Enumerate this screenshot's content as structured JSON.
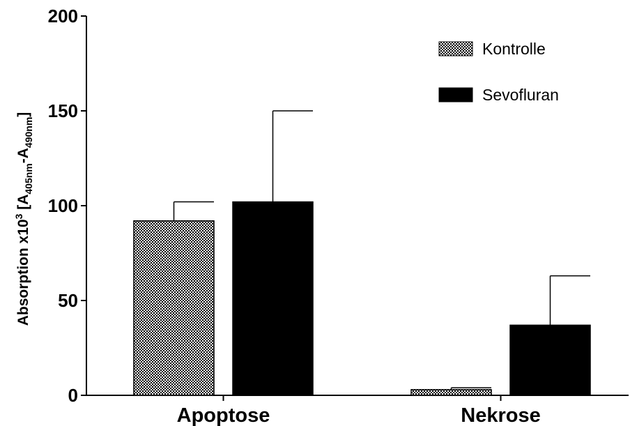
{
  "chart_data": {
    "type": "bar",
    "title": "",
    "xlabel": "",
    "ylabel": {
      "main": "Absorption x10",
      "sup": "3",
      "bracket_open": " [A",
      "sub1": "405nm",
      "mid": "-A",
      "sub2": "490nm",
      "bracket_close": "]"
    },
    "ylim": [
      0,
      200
    ],
    "yticks": [
      0,
      50,
      100,
      150,
      200
    ],
    "categories": [
      "Apoptose",
      "Nekrose"
    ],
    "series": [
      {
        "name": "Kontrolle",
        "pattern": "checker",
        "color": "#000000",
        "values": [
          92,
          3
        ],
        "errors": [
          10,
          1
        ]
      },
      {
        "name": "Sevofluran",
        "pattern": "solid",
        "color": "#000000",
        "values": [
          102,
          37
        ],
        "errors": [
          48,
          26
        ]
      }
    ],
    "legend_position": "top-right",
    "grid": false
  }
}
